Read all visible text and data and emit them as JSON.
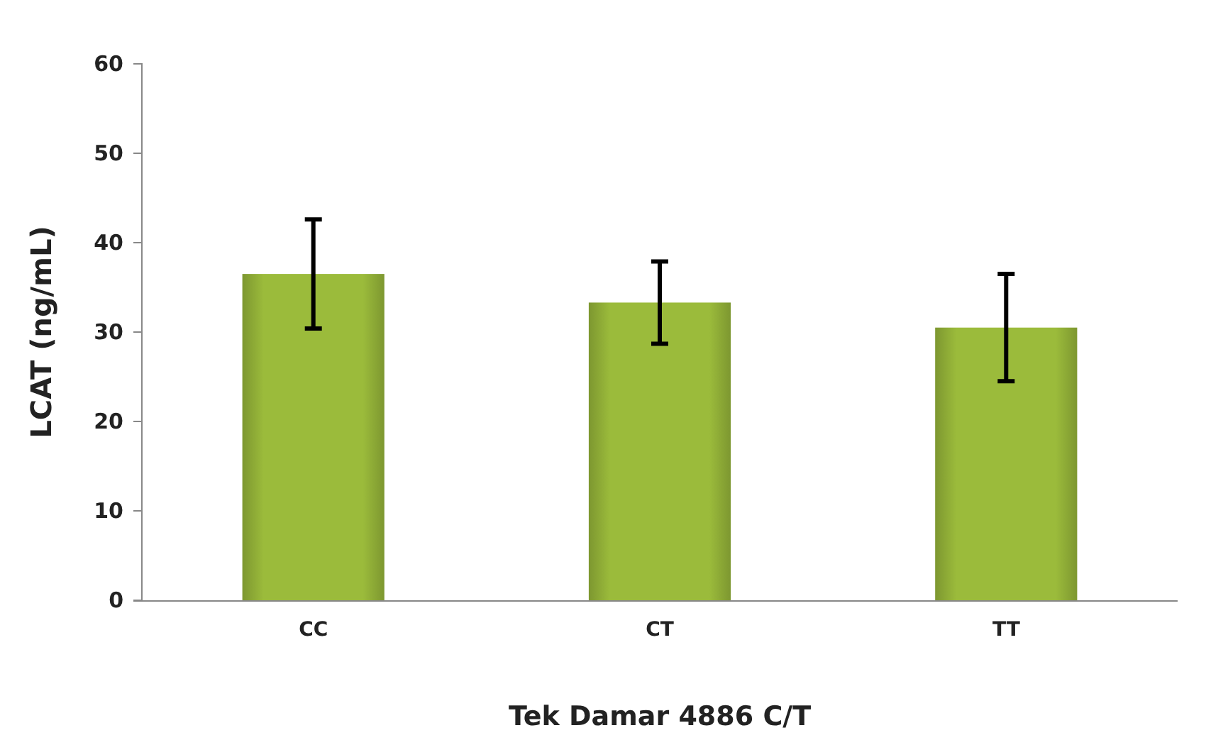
{
  "chart_data": {
    "type": "bar",
    "xlabel": "Tek Damar  4886 C/T",
    "ylabel": "LCAT (ng/mL)",
    "categories": [
      "CC",
      "CT",
      "TT"
    ],
    "values": [
      36.5,
      33.3,
      30.5
    ],
    "errors": [
      6.1,
      4.6,
      6.0
    ],
    "color": "#9bbb3b",
    "ylim": [
      0,
      60
    ],
    "yticks": [
      0,
      10,
      20,
      30,
      40,
      50,
      60
    ],
    "grid": false
  }
}
